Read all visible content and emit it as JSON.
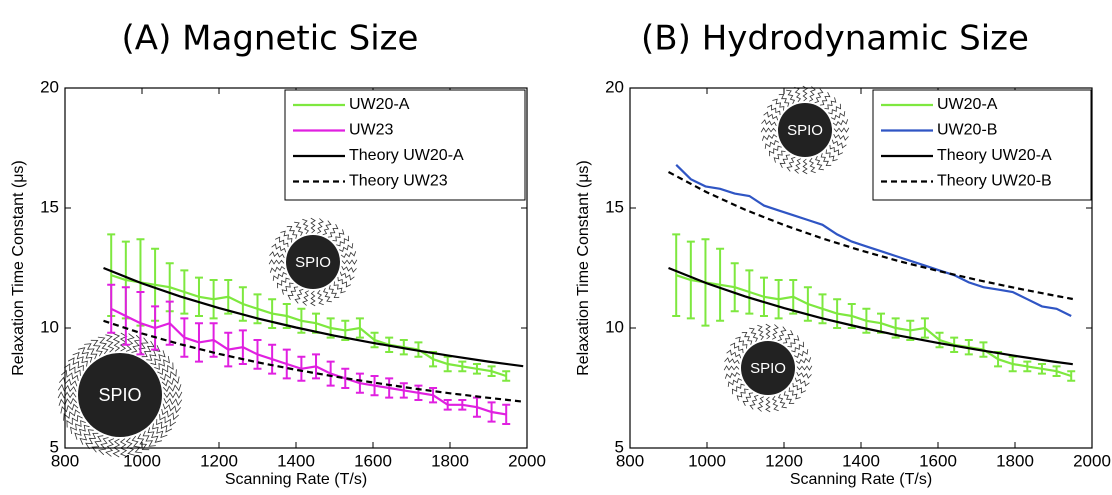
{
  "chart_data": [
    {
      "type": "line",
      "title": "(A) Magnetic Size",
      "xlabel": "Scanning Rate (T/s)",
      "ylabel": "Relaxation Time Constant (μs)",
      "xlim": [
        800,
        2000
      ],
      "ylim": [
        5,
        20
      ],
      "xticks": [
        800,
        1000,
        1200,
        1400,
        1600,
        1800,
        2000
      ],
      "yticks": [
        5,
        10,
        15,
        20
      ],
      "legend": "upper right",
      "grid": false,
      "annotations": [
        "SPIO",
        "SPIO"
      ],
      "series": [
        {
          "name": "UW20-A",
          "color": "#7ee83f",
          "dash": false,
          "x": [
            920,
            958,
            996,
            1034,
            1072,
            1110,
            1148,
            1186,
            1224,
            1262,
            1300,
            1338,
            1376,
            1414,
            1452,
            1490,
            1528,
            1566,
            1604,
            1642,
            1680,
            1718,
            1756,
            1794,
            1832,
            1870,
            1908,
            1946
          ],
          "values": [
            12.2,
            12.0,
            11.9,
            11.8,
            11.7,
            11.5,
            11.3,
            11.2,
            11.3,
            11.0,
            10.8,
            10.6,
            10.5,
            10.3,
            10.2,
            10.0,
            9.9,
            10.0,
            9.5,
            9.3,
            9.2,
            9.1,
            8.7,
            8.5,
            8.4,
            8.3,
            8.2,
            8.0
          ],
          "errors": [
            1.7,
            1.6,
            1.8,
            1.5,
            1.0,
            0.9,
            0.8,
            0.8,
            0.7,
            0.7,
            0.6,
            0.6,
            0.5,
            0.5,
            0.4,
            0.4,
            0.4,
            0.4,
            0.3,
            0.3,
            0.3,
            0.3,
            0.3,
            0.3,
            0.2,
            0.2,
            0.2,
            0.2
          ]
        },
        {
          "name": "UW23",
          "color": "#e020e0",
          "dash": false,
          "x": [
            920,
            958,
            996,
            1034,
            1072,
            1110,
            1148,
            1186,
            1224,
            1262,
            1300,
            1338,
            1376,
            1414,
            1452,
            1490,
            1528,
            1566,
            1604,
            1642,
            1680,
            1718,
            1756,
            1794,
            1832,
            1870,
            1908,
            1946
          ],
          "values": [
            10.8,
            10.5,
            10.2,
            10.0,
            10.2,
            9.6,
            9.4,
            9.5,
            9.1,
            9.2,
            8.9,
            8.7,
            8.5,
            8.3,
            8.4,
            8.1,
            7.9,
            7.7,
            7.6,
            7.5,
            7.4,
            7.3,
            7.2,
            6.8,
            6.8,
            6.7,
            6.5,
            6.4
          ],
          "errors": [
            1.0,
            1.2,
            1.3,
            0.9,
            0.9,
            0.8,
            0.8,
            0.7,
            0.7,
            0.7,
            0.6,
            0.6,
            0.6,
            0.5,
            0.5,
            0.5,
            0.4,
            0.4,
            0.4,
            0.4,
            0.3,
            0.3,
            0.3,
            0.2,
            0.2,
            0.4,
            0.4,
            0.4
          ]
        },
        {
          "name": "Theory UW20-A",
          "color": "#000000",
          "dash": false,
          "x": [
            900,
            1000,
            1100,
            1200,
            1300,
            1400,
            1500,
            1600,
            1700,
            1800,
            1900,
            1990
          ],
          "values": [
            12.5,
            11.86,
            11.31,
            10.83,
            10.4,
            10.02,
            9.68,
            9.38,
            9.1,
            8.84,
            8.6,
            8.41
          ]
        },
        {
          "name": "Theory UW23",
          "color": "#000000",
          "dash": true,
          "x": [
            900,
            1000,
            1100,
            1200,
            1300,
            1400,
            1500,
            1600,
            1700,
            1800,
            1900,
            1990
          ],
          "values": [
            10.3,
            9.77,
            9.32,
            8.92,
            8.57,
            8.26,
            7.98,
            7.73,
            7.49,
            7.28,
            7.09,
            6.93
          ]
        }
      ]
    },
    {
      "type": "line",
      "title": "(B) Hydrodynamic Size",
      "xlabel": "Scanning Rate (T/s)",
      "ylabel": "Relaxation Time Constant (μs)",
      "xlim": [
        800,
        2000
      ],
      "ylim": [
        5,
        20
      ],
      "xticks": [
        800,
        1000,
        1200,
        1400,
        1600,
        1800,
        2000
      ],
      "yticks": [
        5,
        10,
        15,
        20
      ],
      "legend": "upper right",
      "grid": false,
      "annotations": [
        "SPIO",
        "SPIO"
      ],
      "series": [
        {
          "name": "UW20-A",
          "color": "#7ee83f",
          "dash": false,
          "x": [
            920,
            958,
            996,
            1034,
            1072,
            1110,
            1148,
            1186,
            1224,
            1262,
            1300,
            1338,
            1376,
            1414,
            1452,
            1490,
            1528,
            1566,
            1604,
            1642,
            1680,
            1718,
            1756,
            1794,
            1832,
            1870,
            1908,
            1946
          ],
          "values": [
            12.2,
            12.0,
            11.9,
            11.8,
            11.7,
            11.5,
            11.3,
            11.2,
            11.3,
            11.0,
            10.8,
            10.6,
            10.5,
            10.3,
            10.2,
            10.0,
            9.9,
            10.0,
            9.5,
            9.3,
            9.2,
            9.1,
            8.7,
            8.5,
            8.4,
            8.3,
            8.2,
            8.0
          ],
          "errors": [
            1.7,
            1.6,
            1.8,
            1.5,
            1.0,
            0.9,
            0.8,
            0.8,
            0.7,
            0.7,
            0.6,
            0.6,
            0.5,
            0.5,
            0.4,
            0.4,
            0.4,
            0.4,
            0.3,
            0.3,
            0.3,
            0.3,
            0.3,
            0.3,
            0.2,
            0.2,
            0.2,
            0.2
          ]
        },
        {
          "name": "UW20-B",
          "color": "#2f55c4",
          "dash": false,
          "x": [
            920,
            958,
            996,
            1034,
            1072,
            1110,
            1148,
            1186,
            1224,
            1262,
            1300,
            1338,
            1376,
            1414,
            1452,
            1490,
            1528,
            1566,
            1604,
            1642,
            1680,
            1718,
            1756,
            1794,
            1832,
            1870,
            1908,
            1946
          ],
          "values": [
            16.8,
            16.2,
            15.9,
            15.8,
            15.6,
            15.5,
            15.1,
            14.9,
            14.7,
            14.5,
            14.3,
            13.9,
            13.6,
            13.4,
            13.2,
            13.0,
            12.8,
            12.6,
            12.4,
            12.2,
            11.9,
            11.7,
            11.6,
            11.5,
            11.2,
            10.9,
            10.8,
            10.5
          ]
        },
        {
          "name": "Theory UW20-A",
          "color": "#000000",
          "dash": false,
          "x": [
            900,
            1000,
            1100,
            1200,
            1300,
            1400,
            1500,
            1600,
            1700,
            1800,
            1900,
            1950
          ],
          "values": [
            12.5,
            11.86,
            11.31,
            10.83,
            10.4,
            10.02,
            9.68,
            9.38,
            9.1,
            8.84,
            8.6,
            8.49
          ]
        },
        {
          "name": "Theory UW20-B",
          "color": "#000000",
          "dash": true,
          "x": [
            900,
            1000,
            1100,
            1200,
            1300,
            1400,
            1500,
            1600,
            1700,
            1800,
            1900,
            1950
          ],
          "values": [
            16.5,
            15.65,
            14.92,
            14.29,
            13.73,
            13.23,
            12.78,
            12.38,
            12.01,
            11.67,
            11.36,
            11.21
          ]
        }
      ]
    }
  ]
}
